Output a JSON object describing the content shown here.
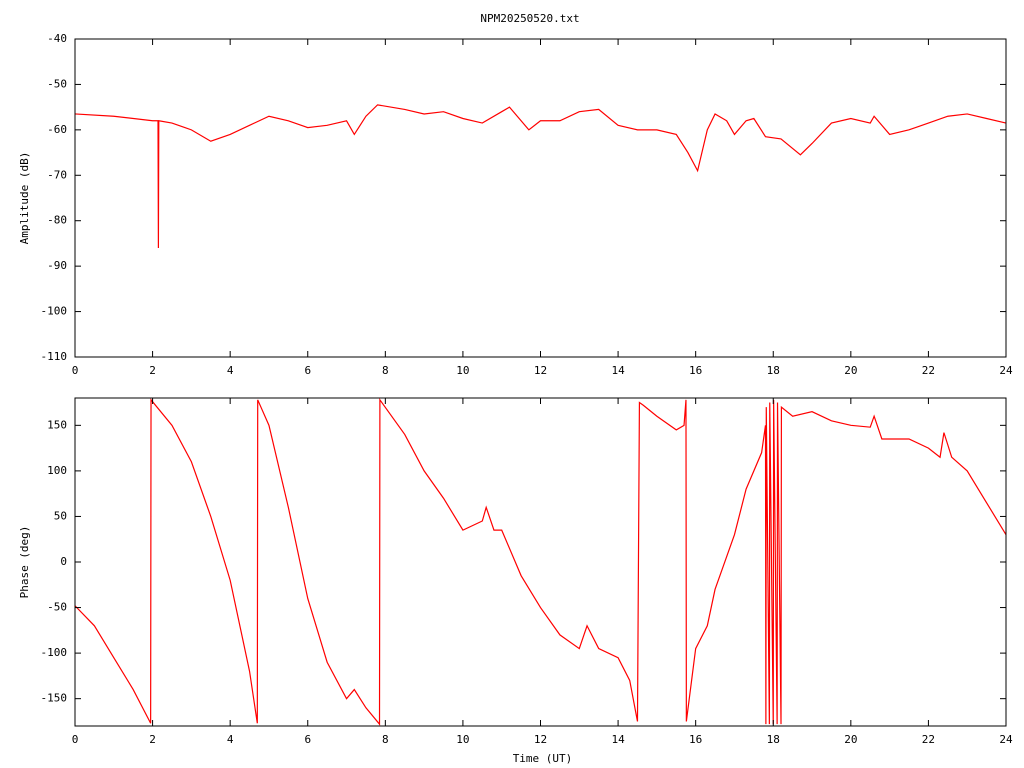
{
  "chart_data": [
    {
      "type": "line",
      "title": "NPM20250520.txt",
      "ylabel": "Amplitude (dB)",
      "xlim": [
        0,
        24
      ],
      "xticks": [
        0,
        2,
        4,
        6,
        8,
        10,
        12,
        14,
        16,
        18,
        20,
        22,
        24
      ],
      "ylim": [
        -110,
        -40
      ],
      "yticks": [
        -110,
        -100,
        -90,
        -80,
        -70,
        -60,
        -50,
        -40
      ],
      "series": [
        {
          "color": "#ff0000",
          "x": [
            0,
            1,
            2,
            2.14,
            2.15,
            2.16,
            2.5,
            3,
            3.5,
            4,
            4.5,
            5,
            5.5,
            6,
            6.5,
            7,
            7.2,
            7.5,
            7.8,
            8.5,
            9,
            9.5,
            10,
            10.5,
            11,
            11.2,
            11.5,
            11.7,
            12,
            12.5,
            13,
            13.5,
            14,
            14.5,
            15,
            15.5,
            15.8,
            16.05,
            16.3,
            16.5,
            16.8,
            17,
            17.3,
            17.5,
            17.8,
            18.2,
            18.7,
            19,
            19.5,
            20,
            20.5,
            20.6,
            21,
            21.5,
            22,
            22.5,
            23,
            23.5,
            24
          ],
          "values": [
            -56.5,
            -57,
            -58,
            -58,
            -86,
            -58,
            -58.5,
            -60,
            -62.5,
            -61,
            -59,
            -57,
            -58,
            -59.5,
            -59,
            -58,
            -61,
            -57,
            -54.5,
            -55.5,
            -56.5,
            -56,
            -57.5,
            -58.5,
            -56,
            -55,
            -58,
            -60,
            -58,
            -58,
            -56,
            -55.5,
            -59,
            -60,
            -60,
            -61,
            -65,
            -69,
            -60,
            -56.5,
            -58,
            -61,
            -58,
            -57.5,
            -61.5,
            -62,
            -65.5,
            -63,
            -58.5,
            -57.5,
            -58.5,
            -57,
            -61,
            -60,
            -58.5,
            -57,
            -56.5,
            -57.5,
            -58.5
          ]
        }
      ]
    },
    {
      "type": "line",
      "xlabel": "Time (UT)",
      "ylabel": "Phase (deg)",
      "xlim": [
        0,
        24
      ],
      "xticks": [
        0,
        2,
        4,
        6,
        8,
        10,
        12,
        14,
        16,
        18,
        20,
        22,
        24
      ],
      "ylim": [
        -180,
        180
      ],
      "yticks": [
        -150,
        -100,
        -50,
        0,
        50,
        100,
        150
      ],
      "series": [
        {
          "color": "#ff0000",
          "x": [
            0,
            0.5,
            1,
            1.5,
            1.95,
            1.96,
            2.5,
            3,
            3.5,
            4,
            4.5,
            4.7,
            4.71,
            5,
            5.5,
            6,
            6.5,
            7,
            7.2,
            7.5,
            7.85,
            7.86,
            8.5,
            9,
            9.5,
            10,
            10.5,
            10.6,
            10.8,
            11,
            11.5,
            12,
            12.5,
            13,
            13.2,
            13.5,
            14,
            14.3,
            14.5,
            14.55,
            14.65,
            15,
            15.5,
            15.7,
            15.75,
            15.76,
            16,
            16.3,
            16.5,
            17,
            17.3,
            17.7,
            17.8,
            17.81,
            17.82,
            17.9,
            17.91,
            18,
            18.01,
            18.1,
            18.11,
            18.2,
            18.21,
            18.5,
            19,
            19.5,
            20,
            20.5,
            20.6,
            20.8,
            21.5,
            22,
            22.3,
            22.4,
            22.6,
            23,
            23.5,
            24
          ],
          "values": [
            -48,
            -70,
            -105,
            -140,
            -177,
            178,
            150,
            110,
            50,
            -20,
            -120,
            -177,
            178,
            150,
            60,
            -40,
            -110,
            -150,
            -140,
            -160,
            -178,
            178,
            140,
            100,
            70,
            35,
            45,
            60,
            35,
            35,
            -15,
            -50,
            -80,
            -95,
            -70,
            -95,
            -105,
            -130,
            -175,
            175,
            172,
            160,
            145,
            150,
            178,
            -175,
            -95,
            -70,
            -30,
            30,
            80,
            120,
            150,
            -178,
            170,
            -178,
            175,
            -178,
            178,
            -178,
            175,
            -178,
            170,
            160,
            165,
            155,
            150,
            148,
            160,
            135,
            135,
            125,
            115,
            142,
            115,
            100,
            65,
            30
          ]
        }
      ]
    }
  ]
}
